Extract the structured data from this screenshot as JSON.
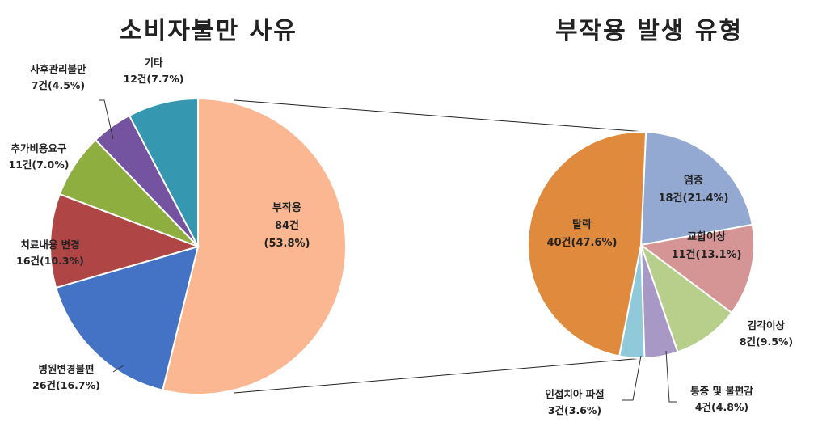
{
  "chart_data": [
    {
      "type": "pie",
      "title": "소비자불만 사유",
      "slices": [
        {
          "name": "부작용",
          "line1": "부작용",
          "line2": "84건",
          "line3": "(53.8%)",
          "value": 84,
          "percent": 53.8,
          "color": "#FAB791"
        },
        {
          "name": "병원변경불편",
          "line1": "병원변경불편",
          "line2": "26건(16.7%)",
          "value": 26,
          "percent": 16.7,
          "color": "#4472C4"
        },
        {
          "name": "치료내용 변경",
          "line1": "치료내용 변경",
          "line2": "16건(10.3%)",
          "value": 16,
          "percent": 10.3,
          "color": "#B04545"
        },
        {
          "name": "추가비용요구",
          "line1": "추가비용요구",
          "line2": "11건(7.0%)",
          "value": 11,
          "percent": 7.0,
          "color": "#8FAE40"
        },
        {
          "name": "사후관리불만",
          "line1": "사후관리불만",
          "line2": "7건(4.5%)",
          "value": 7,
          "percent": 4.5,
          "color": "#7454A0"
        },
        {
          "name": "기타",
          "line1": "기타",
          "line2": "12건(7.7%)",
          "value": 12,
          "percent": 7.7,
          "color": "#3598B0"
        }
      ]
    },
    {
      "type": "pie",
      "title": "부작용 발생 유형",
      "slices": [
        {
          "name": "염증",
          "line1": "염증",
          "line2": "18건(21.4%)",
          "value": 18,
          "percent": 21.4,
          "color": "#93A9D2"
        },
        {
          "name": "교합이상",
          "line1": "교합이상",
          "line2": "11건(13.1%)",
          "value": 11,
          "percent": 13.1,
          "color": "#D59594"
        },
        {
          "name": "감각이상",
          "line1": "감각이상",
          "line2": "8건(9.5%)",
          "value": 8,
          "percent": 9.5,
          "color": "#B8CF8C"
        },
        {
          "name": "통증 및 불편감",
          "line1": "통증 및 불편감",
          "line2": "4건(4.8%)",
          "value": 4,
          "percent": 4.8,
          "color": "#A898C6"
        },
        {
          "name": "인접치아 파절",
          "line1": "인접치아 파절",
          "line2": "3건(3.6%)",
          "value": 3,
          "percent": 3.6,
          "color": "#8FC9DA"
        },
        {
          "name": "탈락",
          "line1": "탈락",
          "line2": "40건(47.6%)",
          "value": 40,
          "percent": 47.6,
          "color": "#E08A3D"
        }
      ]
    }
  ]
}
